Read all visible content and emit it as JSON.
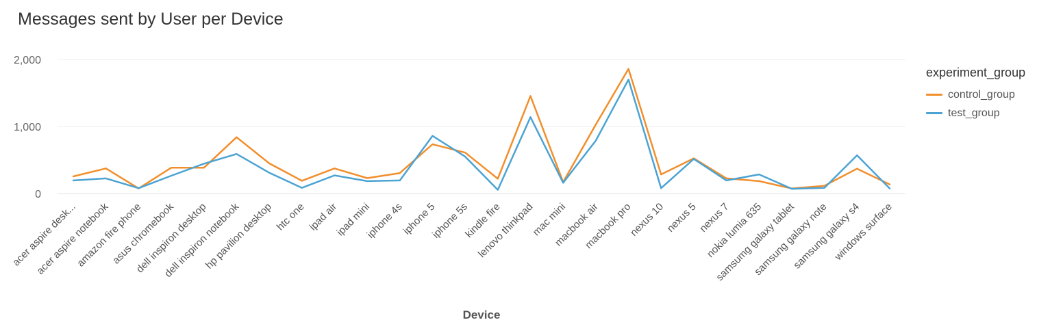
{
  "chart_data": {
    "type": "line",
    "title": "Messages sent by User per Device",
    "xlabel": "Device",
    "ylabel": "",
    "ylim": [
      0,
      2000
    ],
    "yticks": [
      0,
      1000,
      2000
    ],
    "ytick_labels": [
      "0",
      "1,000",
      "2,000"
    ],
    "grid": true,
    "legend": {
      "title": "experiment_group",
      "placement": "right"
    },
    "categories": [
      "acer aspire desk...",
      "acer aspire notebook",
      "amazon fire phone",
      "asus chromebook",
      "dell inspiron desktop",
      "dell inspiron notebook",
      "hp pavilion desktop",
      "htc one",
      "ipad air",
      "ipad mini",
      "iphone 4s",
      "iphone 5",
      "iphone 5s",
      "kindle fire",
      "lenovo thinkpad",
      "mac mini",
      "macbook air",
      "macbook pro",
      "nexus 10",
      "nexus 5",
      "nexus 7",
      "nokia lumia 635",
      "samsumg galaxy tablet",
      "samsung galaxy note",
      "samsung galaxy s4",
      "windows surface"
    ],
    "series": [
      {
        "name": "control_group",
        "color": "#F28E2B",
        "values": [
          255,
          375,
          75,
          385,
          385,
          840,
          450,
          190,
          375,
          230,
          305,
          735,
          610,
          220,
          1455,
          170,
          1030,
          1860,
          285,
          525,
          225,
          185,
          75,
          115,
          370,
          135
        ]
      },
      {
        "name": "test_group",
        "color": "#4BA3D3",
        "values": [
          195,
          225,
          80,
          265,
          445,
          590,
          310,
          85,
          270,
          185,
          195,
          860,
          550,
          55,
          1140,
          160,
          790,
          1700,
          80,
          515,
          195,
          285,
          70,
          85,
          570,
          75
        ]
      }
    ]
  }
}
